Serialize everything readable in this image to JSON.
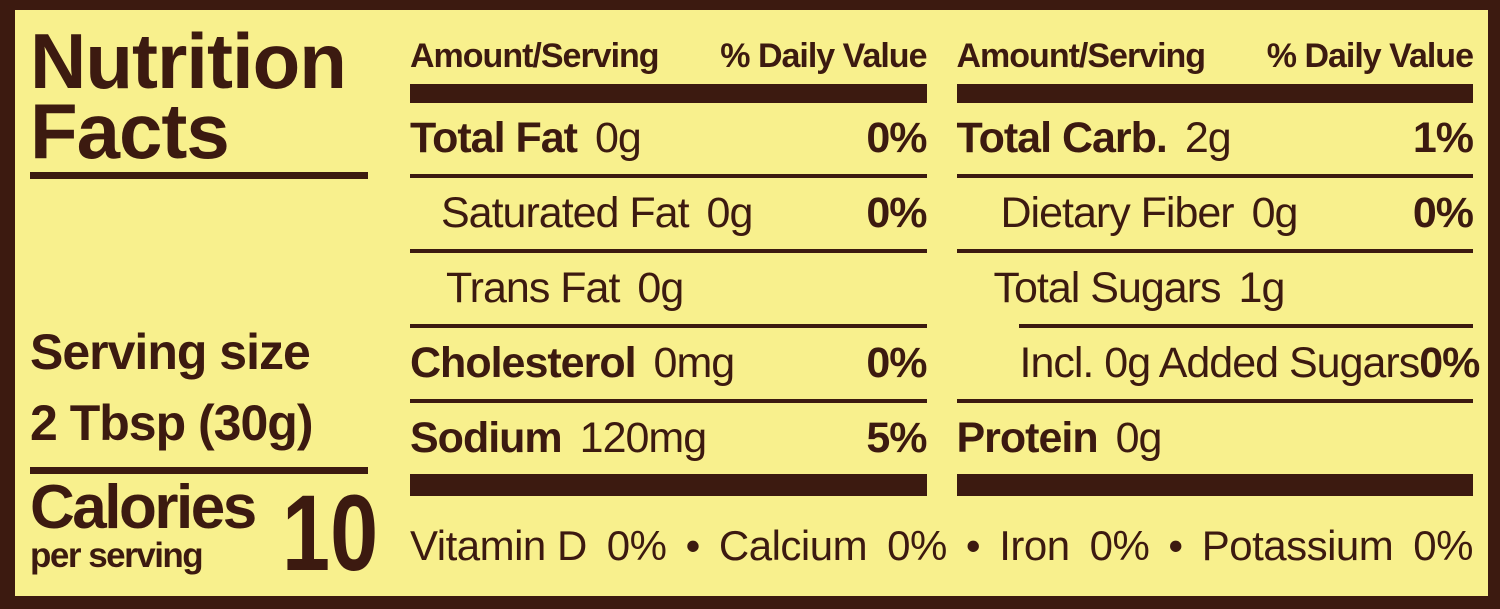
{
  "colors": {
    "background": "#F8F08D",
    "ink": "#3C1A10"
  },
  "left_panel": {
    "title_line1": "Nutrition",
    "title_line2": "Facts",
    "serving_size_label": "Serving size",
    "serving_size_value": "2 Tbsp (30g)",
    "calories_label": "Calories",
    "calories_sublabel": "per serving",
    "calories_value": "10"
  },
  "columns": [
    {
      "header_amount": "Amount/Serving",
      "header_daily_value": "% Daily Value",
      "rows": [
        {
          "name": "Total Fat",
          "amount": "0g",
          "daily_value": "0%"
        },
        {
          "name": "Saturated Fat",
          "amount": "0g",
          "daily_value": "0%"
        },
        {
          "name": "Trans Fat",
          "amount": "0g",
          "daily_value": ""
        },
        {
          "name": "Cholesterol",
          "amount": "0mg",
          "daily_value": "0%"
        },
        {
          "name": "Sodium",
          "amount": "120mg",
          "daily_value": "5%"
        }
      ]
    },
    {
      "header_amount": "Amount/Serving",
      "header_daily_value": "% Daily Value",
      "rows": [
        {
          "name": "Total Carb.",
          "amount": "2g",
          "daily_value": "1%"
        },
        {
          "name": "Dietary Fiber",
          "amount": "0g",
          "daily_value": "0%"
        },
        {
          "name": "Total Sugars",
          "amount": "1g",
          "daily_value": ""
        },
        {
          "name": "Incl. 0g Added Sugars",
          "amount": "",
          "daily_value": "0%"
        },
        {
          "name": "Protein",
          "amount": "0g",
          "daily_value": ""
        }
      ]
    }
  ],
  "micronutrients": {
    "bullet": "•",
    "items": [
      {
        "name": "Vitamin D",
        "daily_value": "0%"
      },
      {
        "name": "Calcium",
        "daily_value": "0%"
      },
      {
        "name": "Iron",
        "daily_value": "0%"
      },
      {
        "name": "Potassium",
        "daily_value": "0%"
      }
    ]
  }
}
